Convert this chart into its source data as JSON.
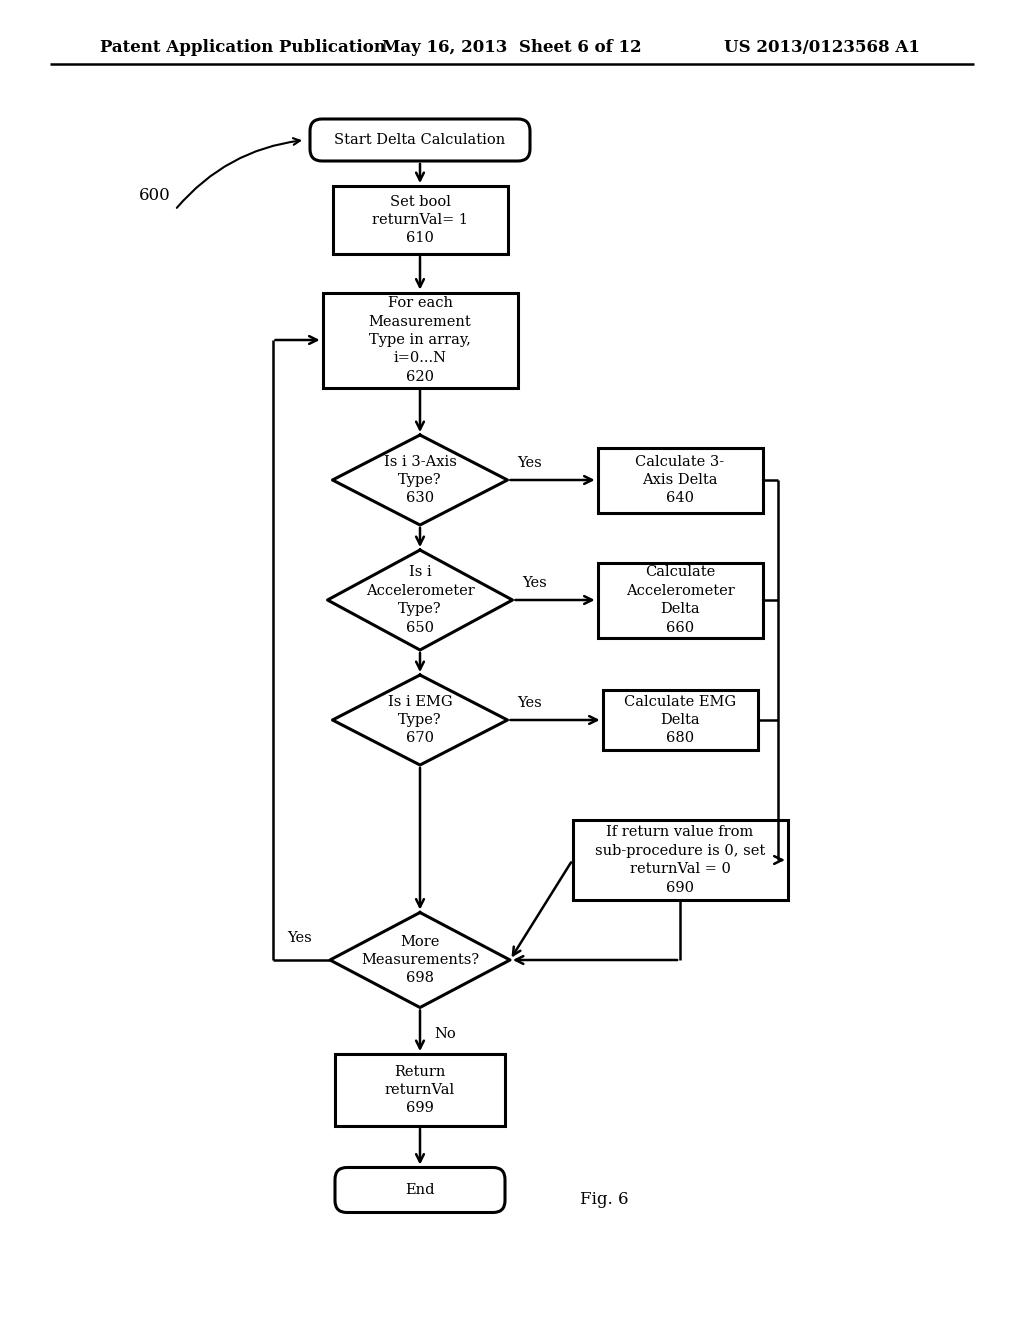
{
  "background_color": "#ffffff",
  "header_left": "Patent Application Publication",
  "header_middle": "May 16, 2013  Sheet 6 of 12",
  "header_right": "US 2013/0123568 A1",
  "fig_label": "Fig. 6"
}
